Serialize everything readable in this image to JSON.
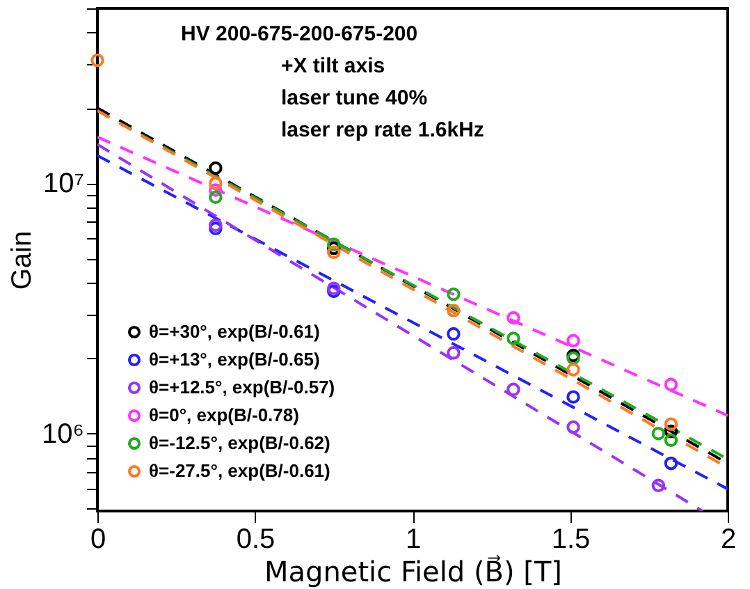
{
  "chart_data": {
    "type": "scatter",
    "xlabel": "Magnetic Field (B⃗) [T]",
    "ylabel": "Gain",
    "annotations": [
      "HV 200-675-200-675-200",
      "+X tilt axis",
      "laser tune 40%",
      "laser rep rate 1.6kHz"
    ],
    "xlim": [
      0,
      2
    ],
    "xticks": [
      0,
      0.5,
      1,
      1.5,
      2
    ],
    "ylim": [
      490000,
      50000000
    ],
    "log": "y",
    "yticks": [
      {
        "value": 500000,
        "label": null
      },
      {
        "value": 600000,
        "label": null
      },
      {
        "value": 700000,
        "label": null
      },
      {
        "value": 800000,
        "label": null
      },
      {
        "value": 900000,
        "label": null
      },
      {
        "value": 1000000,
        "label": "10⁶"
      },
      {
        "value": 2000000,
        "label": null
      },
      {
        "value": 3000000,
        "label": null
      },
      {
        "value": 4000000,
        "label": null
      },
      {
        "value": 5000000,
        "label": null
      },
      {
        "value": 6000000,
        "label": null
      },
      {
        "value": 7000000,
        "label": null
      },
      {
        "value": 8000000,
        "label": null
      },
      {
        "value": 9000000,
        "label": null
      },
      {
        "value": 10000000,
        "label": "10⁷"
      },
      {
        "value": 20000000,
        "label": null
      },
      {
        "value": 30000000,
        "label": null
      },
      {
        "value": 40000000,
        "label": null
      },
      {
        "value": 50000000,
        "label": null
      }
    ],
    "grid": false,
    "legend": "bottom left",
    "marker": "circle",
    "series": [
      {
        "name": "θ=+30°, exp(B/-0.61)",
        "color": "#000000",
        "x": [
          0.375,
          0.75,
          1.51,
          1.82
        ],
        "values": [
          11500000,
          5500000,
          2050000,
          1020000
        ]
      },
      {
        "name": "θ=+13°, exp(B/-0.65)",
        "color": "#2222ff",
        "x": [
          0.375,
          0.75,
          1.13,
          1.51,
          1.82
        ],
        "values": [
          6600000,
          3700000,
          2500000,
          1400000,
          760000
        ]
      },
      {
        "name": "θ=+12.5°, exp(B/-0.57)",
        "color": "#9933ff",
        "x": [
          0.375,
          0.75,
          1.13,
          1.32,
          1.51,
          1.78
        ],
        "values": [
          6800000,
          3800000,
          2100000,
          1500000,
          1060000,
          620000
        ]
      },
      {
        "name": "θ=0°, exp(B/-0.78)",
        "color": "#ff33ff",
        "x": [
          0.375,
          1.32,
          1.51,
          1.82
        ],
        "values": [
          9400000,
          2900000,
          2350000,
          1570000
        ]
      },
      {
        "name": "θ=-12.5°, exp(B/-0.62)",
        "color": "#22aa22",
        "x": [
          0.375,
          0.75,
          1.13,
          1.32,
          1.51,
          1.78,
          1.82
        ],
        "values": [
          8800000,
          5700000,
          3600000,
          2400000,
          2000000,
          1000000,
          940000
        ]
      },
      {
        "name": "θ=-27.5°, exp(B/-0.61)",
        "color": "#ff7722",
        "x": [
          0,
          0.375,
          0.75,
          1.13,
          1.51,
          1.82
        ],
        "values": [
          31000000,
          10000000,
          5300000,
          3100000,
          1800000,
          1090000
        ]
      },
      {
        "type": "line",
        "marker": "none",
        "line_style": "dashed",
        "color": "#000000",
        "x": [
          0,
          2
        ],
        "values": [
          20000000,
          760000
        ]
      },
      {
        "type": "line",
        "marker": "none",
        "line_style": "dashed",
        "color": "#2222ff",
        "x": [
          0,
          2
        ],
        "values": [
          12900000,
          600000
        ]
      },
      {
        "type": "line",
        "marker": "none",
        "line_style": "dashed",
        "color": "#9933ff",
        "x": [
          0,
          1.92
        ],
        "values": [
          14300000,
          490000
        ]
      },
      {
        "type": "line",
        "marker": "none",
        "line_style": "dashed",
        "color": "#ff33ff",
        "x": [
          0,
          2
        ],
        "values": [
          15300000,
          1180000
        ]
      },
      {
        "type": "line",
        "marker": "none",
        "line_style": "dashed",
        "color": "#22aa22",
        "x": [
          0,
          2
        ],
        "values": [
          19500000,
          790000
        ]
      },
      {
        "type": "line",
        "marker": "none",
        "line_style": "dashed",
        "color": "#ff7722",
        "x": [
          0,
          2
        ],
        "values": [
          19500000,
          730000
        ]
      }
    ]
  }
}
